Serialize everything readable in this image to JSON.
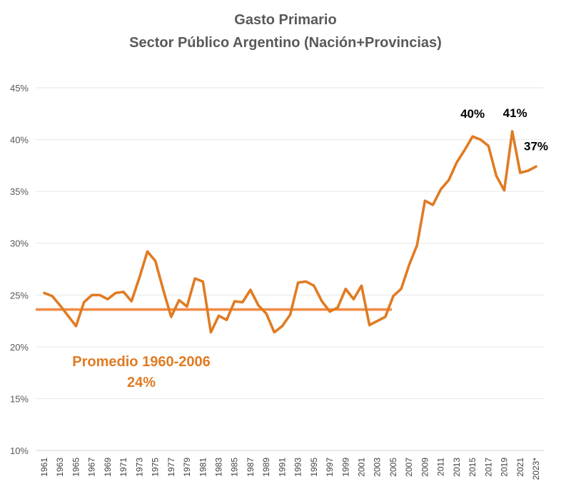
{
  "chart_data": {
    "type": "line",
    "title": [
      "Gasto Primario",
      "Sector Público Argentino (Nación+Provincias)"
    ],
    "xlabel": "",
    "ylabel": "",
    "ylim": [
      10,
      45
    ],
    "yticks": [
      "10%",
      "15%",
      "20%",
      "25%",
      "30%",
      "35%",
      "40%",
      "45%"
    ],
    "grid": true,
    "legend": "none",
    "categories": [
      "1961",
      "1962",
      "1963",
      "1964",
      "1965",
      "1966",
      "1967",
      "1968",
      "1969",
      "1970",
      "1971",
      "1972",
      "1973",
      "1974",
      "1975",
      "1976",
      "1977",
      "1978",
      "1979",
      "1980",
      "1981",
      "1982",
      "1983",
      "1984",
      "1985",
      "1986",
      "1987",
      "1988",
      "1989",
      "1990",
      "1991",
      "1992",
      "1993",
      "1994",
      "1995",
      "1996",
      "1997",
      "1998",
      "1999",
      "2000",
      "2001",
      "2002",
      "2003",
      "2004",
      "2005",
      "2006",
      "2007",
      "2008",
      "2009",
      "2010",
      "2011",
      "2012",
      "2013",
      "2014",
      "2015",
      "2016",
      "2017",
      "2018",
      "2019",
      "2020",
      "2021",
      "2022",
      "2023*"
    ],
    "xtick_labels": [
      "1961",
      "1963",
      "1965",
      "1967",
      "1969",
      "1971",
      "1973",
      "1975",
      "1977",
      "1979",
      "1981",
      "1983",
      "1985",
      "1987",
      "1989",
      "1991",
      "1993",
      "1995",
      "1997",
      "1999",
      "2001",
      "2003",
      "2005",
      "2007",
      "2009",
      "2011",
      "2013",
      "2015",
      "2017",
      "2019",
      "2021",
      "2023*"
    ],
    "series": [
      {
        "name": "Gasto Primario",
        "color": "#E07B22",
        "values": [
          25.2,
          24.9,
          24.0,
          23.0,
          22.0,
          24.3,
          25.0,
          25.0,
          24.6,
          25.2,
          25.3,
          24.4,
          26.7,
          29.2,
          28.3,
          25.5,
          22.9,
          24.5,
          23.9,
          26.6,
          26.3,
          21.4,
          23.0,
          22.6,
          24.4,
          24.3,
          25.5,
          24.0,
          23.2,
          21.4,
          22.0,
          23.1,
          26.2,
          26.3,
          25.9,
          24.4,
          23.4,
          23.8,
          25.6,
          24.6,
          25.9,
          22.1,
          22.5,
          22.9,
          24.9,
          25.6,
          27.9,
          29.8,
          34.1,
          33.7,
          35.2,
          36.1,
          37.8,
          39.0,
          40.3,
          40.0,
          39.4,
          36.5,
          35.1,
          40.8,
          36.8,
          37.0,
          37.4
        ]
      },
      {
        "name": "Promedio 1960-2006",
        "color": "#F08C46",
        "value": 23.6,
        "from": "1961",
        "to": "2005"
      }
    ],
    "annotations": [
      {
        "text": "40%",
        "at": "2015"
      },
      {
        "text": "41%",
        "at": "2020"
      },
      {
        "text": "37%",
        "at": "2023*"
      }
    ],
    "average_label": [
      "Promedio 1960-2006",
      "24%"
    ],
    "average_label_color": "#E07B22"
  }
}
